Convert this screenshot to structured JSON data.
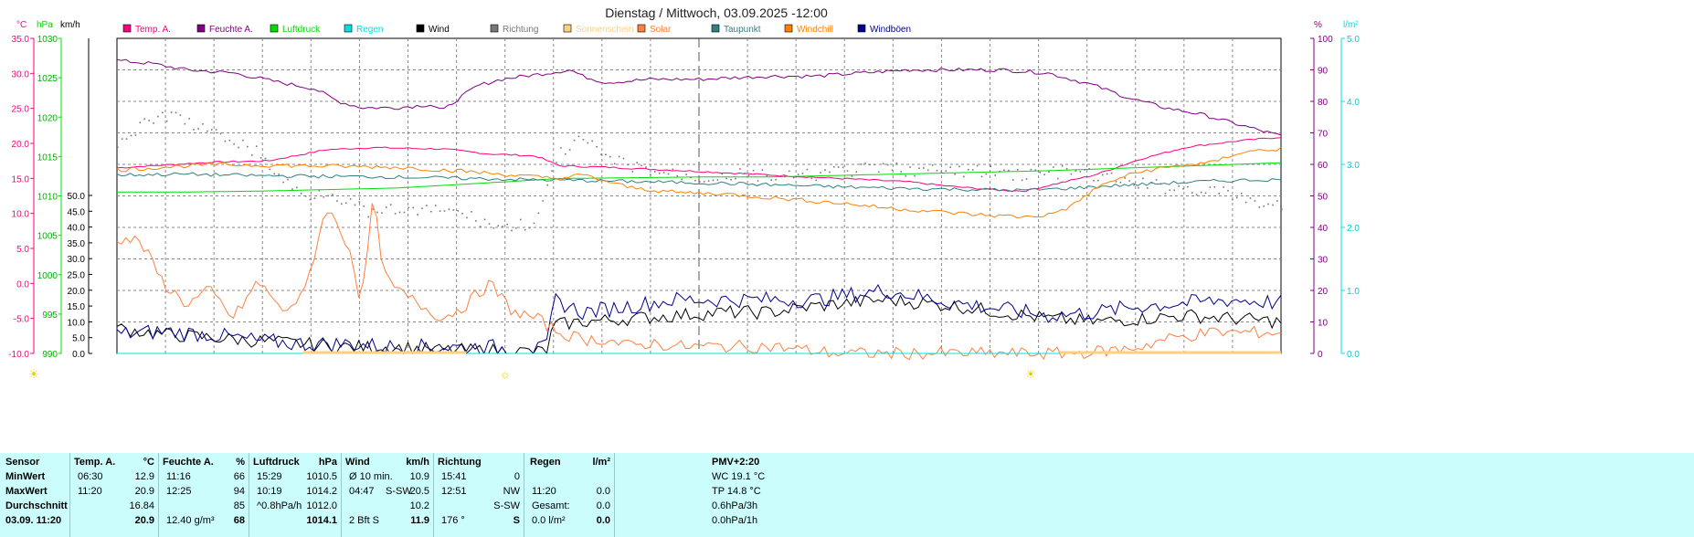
{
  "title": "Dienstag / Mittwoch, 03.09.2025  -12:00",
  "colors": {
    "temp": "#ff0080",
    "feuchte": "#800080",
    "luftdruck": "#00dd00",
    "regen": "#00e0e0",
    "wind": "#000000",
    "richtung": "#777777",
    "sonnenschein": "#ffd080",
    "solar": "#ff8040",
    "taupunkt": "#308080",
    "windchill": "#ff8000",
    "windboeen": "#00008b"
  },
  "legend": [
    {
      "label": "Temp. A.",
      "color": "#ff0080"
    },
    {
      "label": "Feuchte A.",
      "color": "#800080"
    },
    {
      "label": "Luftdruck",
      "color": "#00dd00"
    },
    {
      "label": "Regen",
      "color": "#00e0e0"
    },
    {
      "label": "Wind",
      "color": "#000000"
    },
    {
      "label": "Richtung",
      "color": "#777777"
    },
    {
      "label": "Sonnenschein",
      "color": "#ffd080"
    },
    {
      "label": "Solar",
      "color": "#ff8040"
    },
    {
      "label": "Taupunkt",
      "color": "#308080"
    },
    {
      "label": "Windchill",
      "color": "#ff8000"
    },
    {
      "label": "Windböen",
      "color": "#00008b"
    }
  ],
  "axes": {
    "temp": {
      "unit": "°C",
      "ticks": [
        "35.0",
        "30.0",
        "25.0",
        "20.0",
        "15.0",
        "10.0",
        "5.0",
        "0.0",
        "-5.0",
        "-10.0"
      ],
      "range": [
        -10,
        35
      ]
    },
    "hpa": {
      "unit": "hPa",
      "ticks": [
        "1030",
        "1025",
        "1020",
        "1015",
        "1010",
        "1005",
        "1000",
        "995",
        "990"
      ],
      "range": [
        990,
        1030
      ]
    },
    "kmh": {
      "unit": "km/h",
      "ticks": [
        "50.0",
        "45.0",
        "40.0",
        "35.0",
        "30.0",
        "25.0",
        "20.0",
        "15.0",
        "10.0",
        "5.0",
        "0.0"
      ],
      "range": [
        0,
        50
      ]
    },
    "pct": {
      "unit": "%",
      "ticks": [
        "100",
        "90",
        "80",
        "70",
        "60",
        "50",
        "40",
        "30",
        "20",
        "10",
        "0"
      ],
      "range": [
        0,
        100
      ]
    },
    "rain": {
      "unit": "l/m²",
      "ticks": [
        "5.0",
        "4.0",
        "3.0",
        "2.0",
        "1.0",
        "0.0"
      ],
      "range": [
        0,
        5
      ]
    }
  },
  "chart_data": {
    "type": "line",
    "title": "Dienstag / Mittwoch, 03.09.2025  -12:00",
    "x": {
      "range_hours": [
        -24,
        0
      ],
      "grid": true
    },
    "series": [
      {
        "name": "Temp. A.",
        "axis": "temp",
        "points": [
          [
            0,
            16.5
          ],
          [
            8,
            17.3
          ],
          [
            13,
            17.5
          ],
          [
            18,
            19.1
          ],
          [
            22,
            19.4
          ],
          [
            28,
            19.2
          ],
          [
            32,
            18.5
          ],
          [
            36,
            18.2
          ],
          [
            38,
            16.8
          ],
          [
            42,
            16.6
          ],
          [
            46,
            16.3
          ],
          [
            50,
            16.0
          ],
          [
            56,
            15.5
          ],
          [
            62,
            15.0
          ],
          [
            68,
            14.5
          ],
          [
            72,
            13.8
          ],
          [
            76,
            13.3
          ],
          [
            78,
            13.2
          ],
          [
            84,
            15.5
          ],
          [
            88,
            17.8
          ],
          [
            92,
            19.5
          ],
          [
            96,
            20.3
          ],
          [
            100,
            20.9
          ]
        ]
      },
      {
        "name": "Feuchte A.",
        "axis": "pct",
        "points": [
          [
            0,
            93
          ],
          [
            3,
            92
          ],
          [
            6,
            90
          ],
          [
            10,
            89
          ],
          [
            14,
            86
          ],
          [
            17,
            84
          ],
          [
            19,
            80
          ],
          [
            21,
            78
          ],
          [
            24,
            78
          ],
          [
            27,
            79
          ],
          [
            28,
            77
          ],
          [
            29,
            80
          ],
          [
            31,
            85
          ],
          [
            33,
            87
          ],
          [
            37,
            89
          ],
          [
            39,
            90
          ],
          [
            40,
            88
          ],
          [
            42,
            86
          ],
          [
            46,
            87
          ],
          [
            50,
            87
          ],
          [
            56,
            88
          ],
          [
            60,
            88
          ],
          [
            64,
            89
          ],
          [
            68,
            90
          ],
          [
            72,
            90
          ],
          [
            76,
            90
          ],
          [
            80,
            89
          ],
          [
            84,
            85
          ],
          [
            87,
            81
          ],
          [
            90,
            78
          ],
          [
            93,
            76
          ],
          [
            96,
            73
          ],
          [
            99,
            70
          ],
          [
            100,
            69
          ]
        ]
      },
      {
        "name": "Luftdruck",
        "axis": "hpa",
        "points": [
          [
            0,
            1010.5
          ],
          [
            6,
            1010.5
          ],
          [
            12,
            1010.6
          ],
          [
            18,
            1010.8
          ],
          [
            24,
            1011.0
          ],
          [
            30,
            1011.5
          ],
          [
            38,
            1012.2
          ],
          [
            44,
            1012.3
          ],
          [
            50,
            1012.4
          ],
          [
            56,
            1012.4
          ],
          [
            62,
            1012.6
          ],
          [
            68,
            1012.8
          ],
          [
            74,
            1013.0
          ],
          [
            80,
            1013.2
          ],
          [
            86,
            1013.5
          ],
          [
            92,
            1013.8
          ],
          [
            100,
            1014.2
          ]
        ]
      },
      {
        "name": "Wind",
        "axis": "kmh",
        "points": [
          [
            0,
            8
          ],
          [
            4,
            6
          ],
          [
            8,
            5
          ],
          [
            12,
            4
          ],
          [
            16,
            3
          ],
          [
            20,
            2
          ],
          [
            24,
            2
          ],
          [
            28,
            1
          ],
          [
            32,
            1
          ],
          [
            36,
            0.5
          ],
          [
            37,
            1
          ],
          [
            37.5,
            9
          ],
          [
            40,
            10
          ],
          [
            44,
            11
          ],
          [
            48,
            12
          ],
          [
            52,
            13
          ],
          [
            56,
            13
          ],
          [
            60,
            15
          ],
          [
            66,
            17
          ],
          [
            72,
            15
          ],
          [
            76,
            13
          ],
          [
            80,
            11
          ],
          [
            84,
            10
          ],
          [
            88,
            11
          ],
          [
            92,
            12
          ],
          [
            96,
            11
          ],
          [
            100,
            10
          ]
        ]
      },
      {
        "name": "Windböen",
        "axis": "kmh",
        "points": [
          [
            0,
            6
          ],
          [
            4,
            7
          ],
          [
            8,
            6
          ],
          [
            12,
            4
          ],
          [
            16,
            3
          ],
          [
            20,
            3
          ],
          [
            24,
            2
          ],
          [
            28,
            2
          ],
          [
            32,
            2
          ],
          [
            36,
            1
          ],
          [
            37,
            2
          ],
          [
            37.5,
            17
          ],
          [
            40,
            13
          ],
          [
            44,
            15
          ],
          [
            48,
            17
          ],
          [
            52,
            17
          ],
          [
            56,
            17
          ],
          [
            60,
            17
          ],
          [
            66,
            20
          ],
          [
            72,
            16
          ],
          [
            76,
            14
          ],
          [
            80,
            12
          ],
          [
            84,
            13
          ],
          [
            88,
            15
          ],
          [
            92,
            16
          ],
          [
            96,
            17
          ],
          [
            100,
            16
          ]
        ]
      },
      {
        "name": "Richtung",
        "axis": "pct",
        "points": [
          [
            0,
            67
          ],
          [
            2,
            72
          ],
          [
            4,
            76
          ],
          [
            6,
            74
          ],
          [
            8,
            70
          ],
          [
            10,
            68
          ],
          [
            12,
            64
          ],
          [
            14,
            56
          ],
          [
            16,
            50
          ],
          [
            18,
            52
          ],
          [
            20,
            48
          ],
          [
            22,
            44
          ],
          [
            24,
            46
          ],
          [
            26,
            45
          ],
          [
            28,
            46
          ],
          [
            30,
            44
          ],
          [
            33,
            40
          ],
          [
            36,
            42
          ],
          [
            38,
            64
          ],
          [
            40,
            68
          ],
          [
            42,
            62
          ],
          [
            46,
            58
          ],
          [
            50,
            56
          ],
          [
            54,
            57
          ],
          [
            58,
            56
          ],
          [
            62,
            58
          ],
          [
            66,
            59
          ],
          [
            70,
            58
          ],
          [
            74,
            58
          ],
          [
            78,
            57
          ],
          [
            82,
            58
          ],
          [
            86,
            55
          ],
          [
            90,
            53
          ],
          [
            94,
            52
          ],
          [
            96,
            50
          ],
          [
            98,
            48
          ],
          [
            100,
            47
          ]
        ]
      },
      {
        "name": "Solar",
        "axis": "temp",
        "points": [
          [
            0,
            6.5
          ],
          [
            2,
            6
          ],
          [
            4,
            0
          ],
          [
            6,
            -3
          ],
          [
            8,
            -1
          ],
          [
            10,
            -5
          ],
          [
            12,
            0
          ],
          [
            13,
            -1
          ],
          [
            14,
            -4
          ],
          [
            16,
            -2
          ],
          [
            18,
            11
          ],
          [
            20,
            5
          ],
          [
            21,
            -3
          ],
          [
            22,
            12
          ],
          [
            23,
            1
          ],
          [
            24,
            -1
          ],
          [
            26,
            -3
          ],
          [
            28,
            -5
          ],
          [
            30,
            -3
          ],
          [
            32,
            0
          ],
          [
            34,
            -4
          ],
          [
            36,
            -5
          ],
          [
            38,
            -7
          ],
          [
            40,
            -8
          ],
          [
            42,
            -8
          ],
          [
            44,
            -9
          ],
          [
            46,
            -8.5
          ],
          [
            48,
            -9
          ],
          [
            50,
            -9
          ],
          [
            56,
            -9
          ],
          [
            62,
            -10
          ],
          [
            78,
            -10
          ],
          [
            82,
            -10
          ],
          [
            86,
            -9.5
          ],
          [
            88,
            -9
          ],
          [
            90,
            -8
          ],
          [
            94,
            -7
          ],
          [
            96,
            -7
          ],
          [
            100,
            -7
          ]
        ]
      },
      {
        "name": "Taupunkt",
        "axis": "temp",
        "points": [
          [
            0,
            15.5
          ],
          [
            6,
            15.6
          ],
          [
            12,
            15.4
          ],
          [
            18,
            15.3
          ],
          [
            24,
            15.2
          ],
          [
            30,
            15.0
          ],
          [
            36,
            14.8
          ],
          [
            40,
            14.7
          ],
          [
            46,
            14.5
          ],
          [
            52,
            14.3
          ],
          [
            58,
            14.0
          ],
          [
            64,
            13.7
          ],
          [
            70,
            13.5
          ],
          [
            74,
            13.4
          ],
          [
            78,
            13.3
          ],
          [
            82,
            13.6
          ],
          [
            86,
            14.0
          ],
          [
            90,
            14.3
          ],
          [
            94,
            14.6
          ],
          [
            98,
            14.8
          ],
          [
            100,
            14.8
          ]
        ]
      },
      {
        "name": "Windchill",
        "axis": "temp",
        "points": [
          [
            0,
            16.2
          ],
          [
            8,
            17.0
          ],
          [
            16,
            16.8
          ],
          [
            24,
            16.6
          ],
          [
            30,
            16.0
          ],
          [
            36,
            15.2
          ],
          [
            38,
            15.0
          ],
          [
            40,
            15.5
          ],
          [
            44,
            13.7
          ],
          [
            48,
            13.0
          ],
          [
            52,
            12.8
          ],
          [
            58,
            12.0
          ],
          [
            62,
            11.5
          ],
          [
            66,
            10.8
          ],
          [
            70,
            10.3
          ],
          [
            74,
            9.8
          ],
          [
            78,
            9.5
          ],
          [
            80,
            9.8
          ],
          [
            82,
            11.0
          ],
          [
            84,
            13.5
          ],
          [
            86,
            15.0
          ],
          [
            88,
            16.0
          ],
          [
            90,
            16.5
          ],
          [
            92,
            17.0
          ],
          [
            94,
            17.2
          ],
          [
            96,
            18.5
          ],
          [
            98,
            19.0
          ],
          [
            100,
            19.2
          ]
        ]
      },
      {
        "name": "Regen",
        "axis": "rain",
        "points": [
          [
            0,
            0
          ],
          [
            100,
            0
          ]
        ]
      },
      {
        "name": "Sonnenschein",
        "axis": "pct",
        "points": [
          [
            0,
            0
          ],
          [
            100,
            0
          ]
        ]
      }
    ]
  },
  "sun_markers": [
    "☀",
    "☼",
    "☀"
  ],
  "table": {
    "sensor": {
      "h": "Sensor",
      "r1": "MinWert",
      "r2": "MaxWert",
      "r3": "Durchschnitt",
      "r4": "03.09. 11:20"
    },
    "temp": {
      "h": "Temp. A.",
      "unit": "°C",
      "r1t": "06:30",
      "r1v": "12.9",
      "r2t": "11:20",
      "r2v": "20.9",
      "r3v": "16.84",
      "r4v": "20.9"
    },
    "feuchte": {
      "h": "Feuchte A.",
      "unit": "%",
      "r1t": "11:16",
      "r1v": "66",
      "r2t": "12:25",
      "r2v": "94",
      "r3v": "85",
      "r4t": "12.40 g/m³",
      "r4v": "68"
    },
    "luftdruck": {
      "h": "Luftdruck",
      "unit": "hPa",
      "r1t": "15:29",
      "r1v": "1010.5",
      "r2t": "10:19",
      "r2v": "1014.2",
      "r3t": "^0.8hPa/h",
      "r3v": "1012.0",
      "r4v": "1014.1"
    },
    "wind": {
      "h": "Wind",
      "unit": "km/h",
      "r1t": "Ø 10 min.",
      "r1v": "10.9",
      "r2t": "04:47",
      "r2m": "S-SW",
      "r2v": "20.5",
      "r3v": "10.2",
      "r4t": "2 Bft S",
      "r4v": "11.9"
    },
    "richtung": {
      "h": "Richtung",
      "r1t": "15:41",
      "r1v": "0",
      "r2t": "12:51",
      "r2v": "NW",
      "r3v": "S-SW",
      "r4t": "176 °",
      "r4v": "S"
    },
    "regen": {
      "h": "Regen",
      "unit": "l/m²",
      "r2t": "11:20",
      "r2v": "0.0",
      "r3t": "Gesamt:",
      "r3v": "0.0",
      "r4t": "0.0 l/m²",
      "r4v": "0.0"
    },
    "extra": {
      "h": "PMV+2:20",
      "r1": "WC 19.1 °C",
      "r2": "TP 14.8 °C",
      "r3": "0.6hPa/3h",
      "r4": "0.0hPa/1h"
    }
  }
}
